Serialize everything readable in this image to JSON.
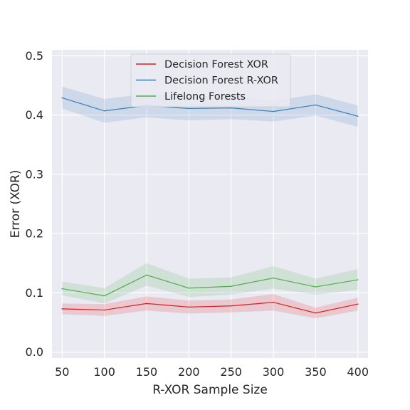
{
  "chart_data": {
    "type": "line",
    "x": [
      50,
      100,
      150,
      200,
      250,
      300,
      350,
      400
    ],
    "xlabel": "R-XOR Sample Size",
    "ylabel": "Error (XOR)",
    "xlim": [
      38,
      412
    ],
    "ylim": [
      -0.01,
      0.51
    ],
    "xticks": [
      50,
      100,
      150,
      200,
      250,
      300,
      350,
      400
    ],
    "yticks": [
      0.0,
      0.1,
      0.2,
      0.3,
      0.4,
      0.5
    ],
    "ytick_labels": [
      "0.0",
      "0.1",
      "0.2",
      "0.3",
      "0.4",
      "0.5"
    ],
    "grid": true,
    "legend_position": "top-center",
    "series": [
      {
        "name": "Decision Forest XOR",
        "color": "#e41a1c",
        "values": [
          0.073,
          0.071,
          0.082,
          0.076,
          0.078,
          0.084,
          0.066,
          0.081
        ],
        "lower": [
          0.064,
          0.061,
          0.07,
          0.065,
          0.067,
          0.07,
          0.057,
          0.07
        ],
        "upper": [
          0.082,
          0.081,
          0.094,
          0.087,
          0.089,
          0.098,
          0.075,
          0.092
        ]
      },
      {
        "name": "Decision Forest R-XOR",
        "color": "#377eb8",
        "values": [
          0.429,
          0.407,
          0.416,
          0.411,
          0.412,
          0.406,
          0.417,
          0.398
        ],
        "lower": [
          0.411,
          0.387,
          0.396,
          0.391,
          0.393,
          0.389,
          0.399,
          0.38
        ],
        "upper": [
          0.448,
          0.427,
          0.436,
          0.431,
          0.432,
          0.424,
          0.435,
          0.416
        ]
      },
      {
        "name": "Lifelong Forests",
        "color": "#4daf4a",
        "values": [
          0.107,
          0.095,
          0.13,
          0.108,
          0.111,
          0.125,
          0.11,
          0.122
        ],
        "lower": [
          0.096,
          0.082,
          0.112,
          0.093,
          0.097,
          0.107,
          0.097,
          0.105
        ],
        "upper": [
          0.119,
          0.108,
          0.15,
          0.124,
          0.126,
          0.145,
          0.124,
          0.14
        ]
      }
    ]
  }
}
